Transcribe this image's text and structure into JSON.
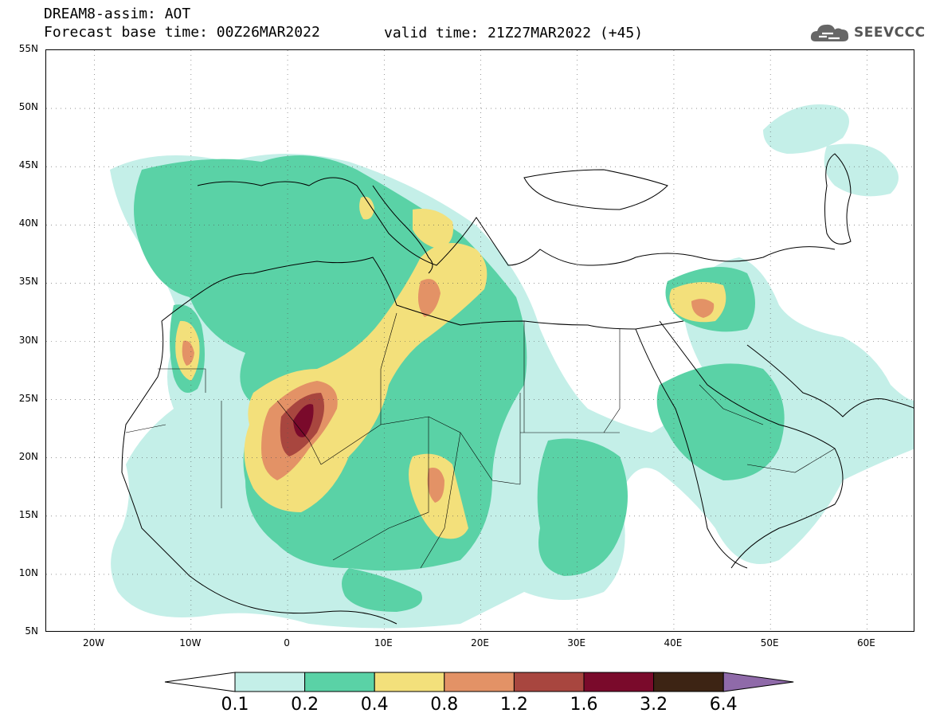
{
  "header": {
    "title_line1": "DREAM8-assim: AOT",
    "title_line2": "Forecast base time: 00Z26MAR2022",
    "valid_time": "valid time: 21Z27MAR2022 (+45)",
    "logo_text": "SEEVCCC",
    "logo_icon": "cloud-icon"
  },
  "map": {
    "lat_labels": [
      "55N",
      "50N",
      "45N",
      "40N",
      "35N",
      "30N",
      "25N",
      "20N",
      "15N",
      "10N",
      "5N"
    ],
    "lon_labels": [
      "20W",
      "10W",
      "0",
      "10E",
      "20E",
      "30E",
      "40E",
      "50E",
      "60E"
    ],
    "extent": {
      "lon_min": -25,
      "lon_max": 65,
      "lat_min": 5,
      "lat_max": 55
    },
    "grid": "dotted"
  },
  "colorbar": {
    "levels": [
      "0.1",
      "0.2",
      "0.4",
      "0.8",
      "1.2",
      "1.6",
      "3.2",
      "6.4"
    ],
    "colors": [
      "#ffffff",
      "#c4efe8",
      "#5ad2a6",
      "#f3e07b",
      "#e39266",
      "#a8463f",
      "#7a0a2b",
      "#3d2414",
      "#8f6aa9"
    ]
  },
  "colors": {
    "c1": "#c4efe8",
    "c2": "#5ad2a6",
    "c3": "#f3e07b",
    "c4": "#e39266",
    "c5": "#a8463f",
    "c6": "#7a0a2b"
  }
}
